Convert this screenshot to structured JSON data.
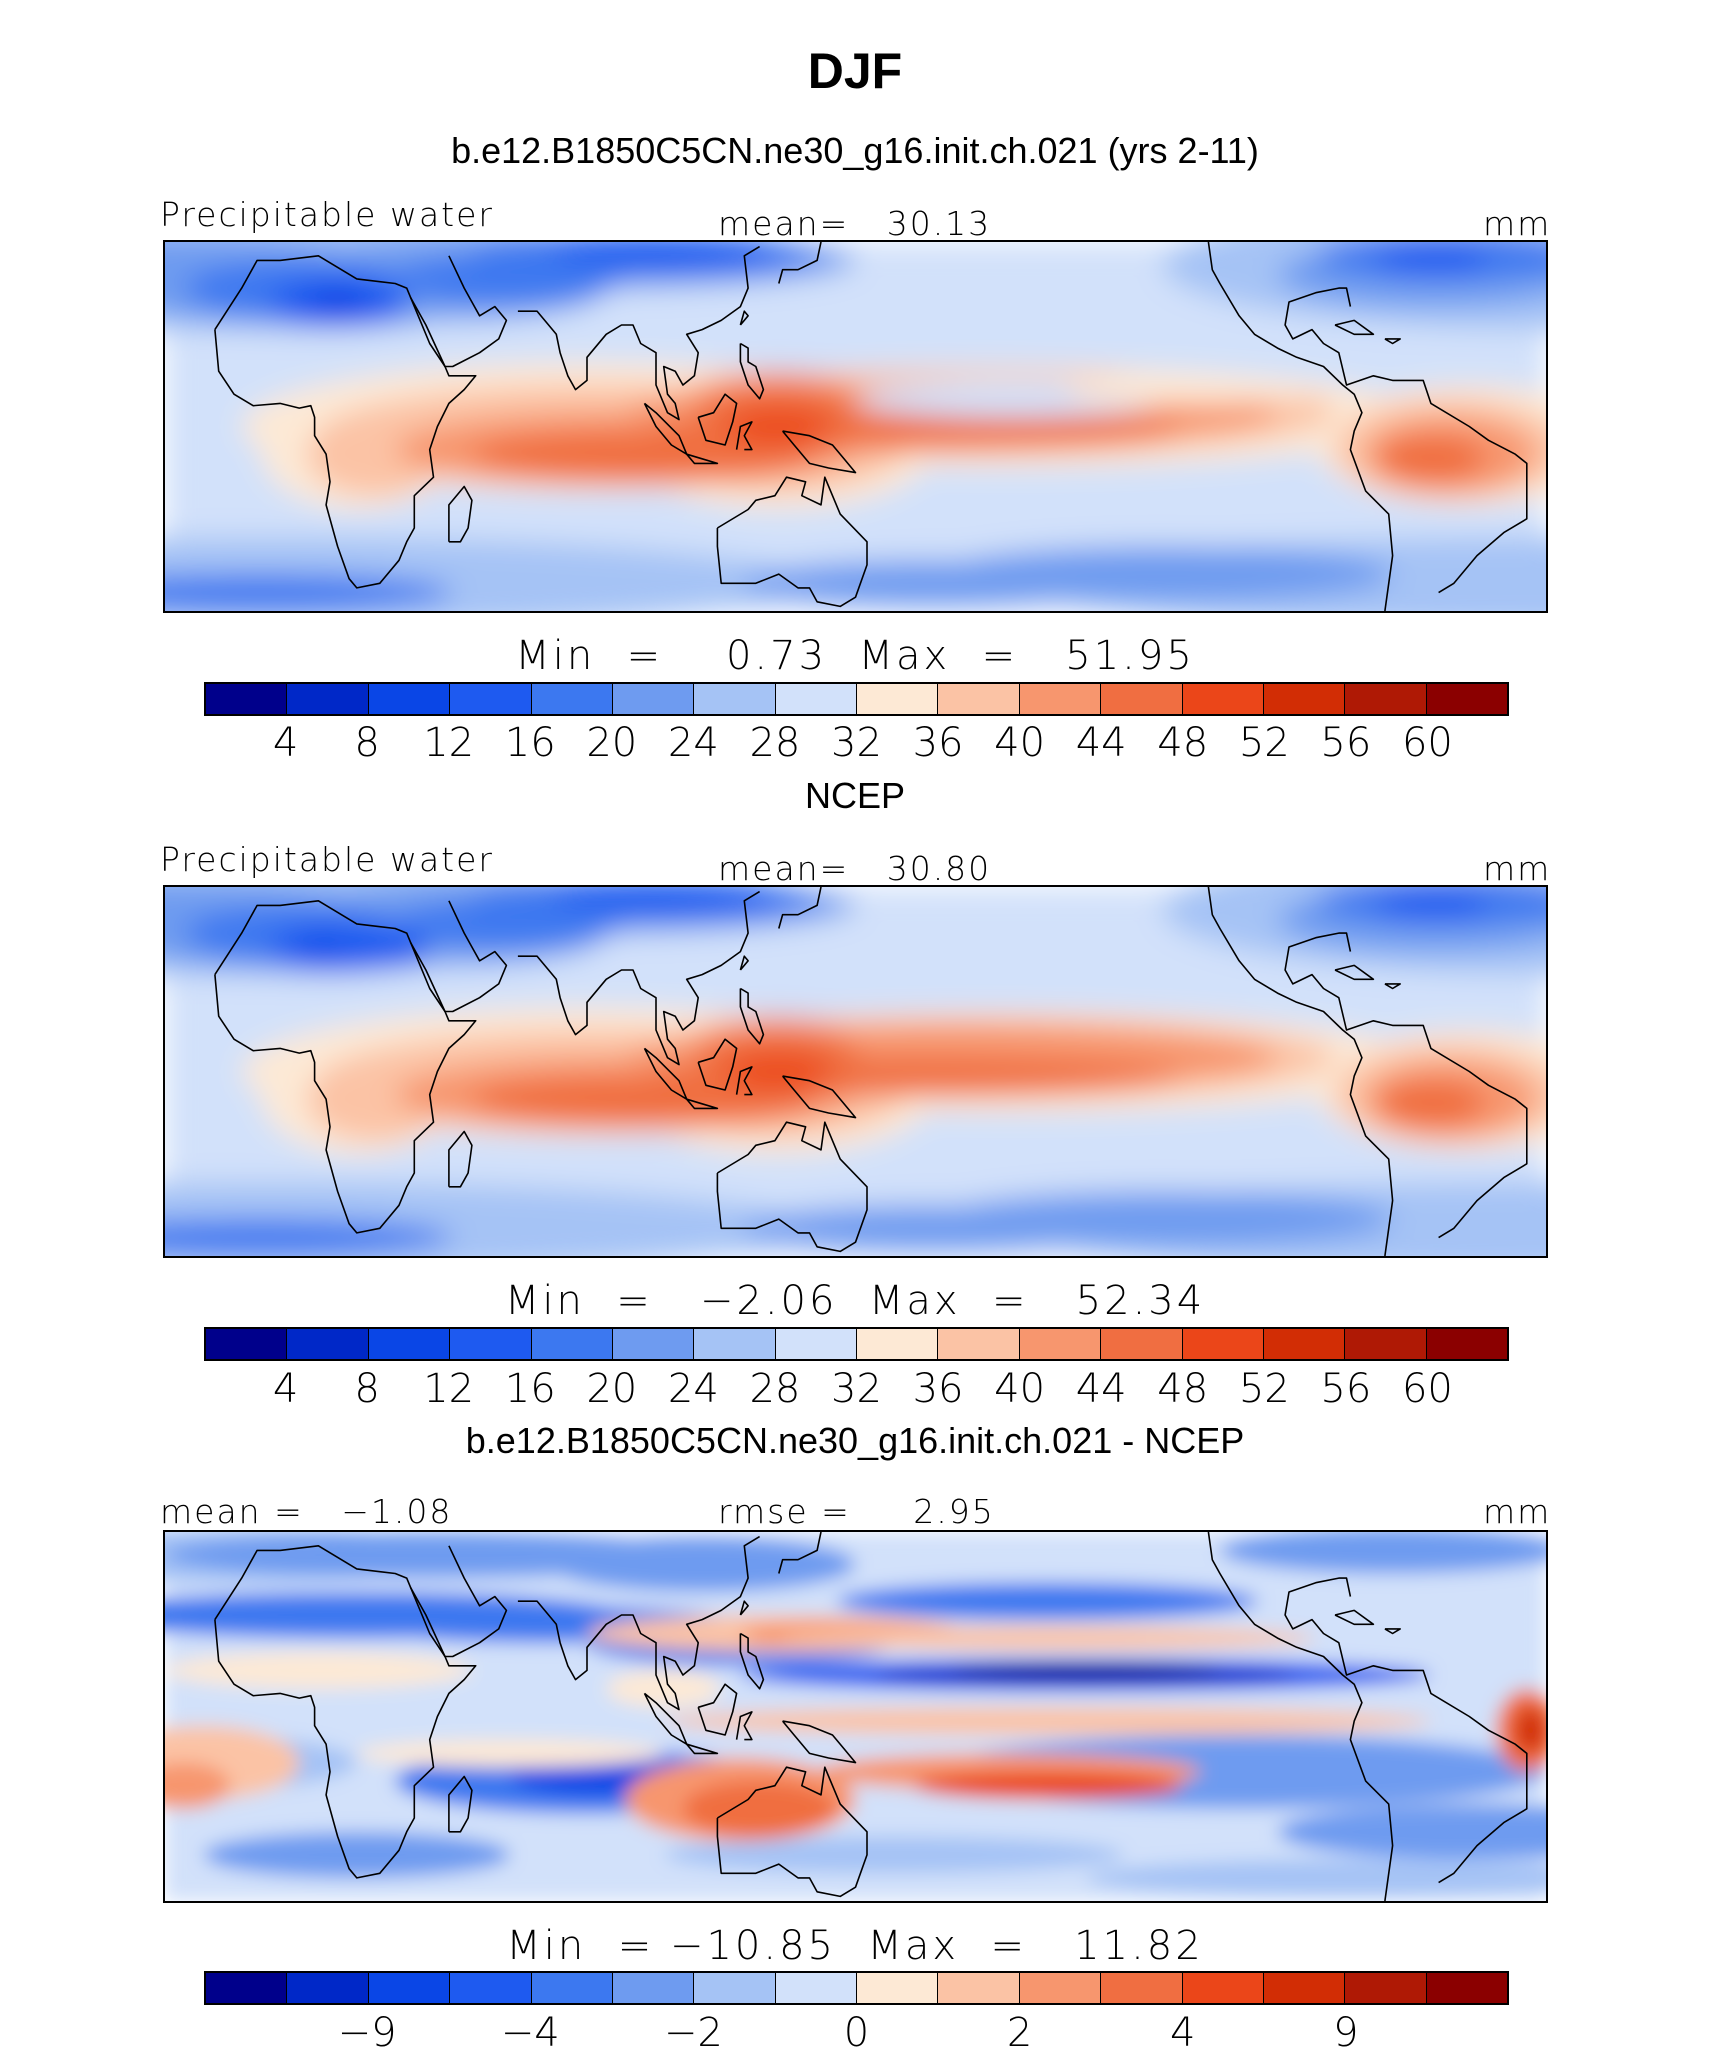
{
  "title": "DJF",
  "palette": [
    "#00008b",
    "#0028c8",
    "#0a46e6",
    "#1e5af0",
    "#3c78f0",
    "#6e9bf0",
    "#a5c3f5",
    "#d2e1fa",
    "#fde9d5",
    "#fbc3a5",
    "#f7966e",
    "#f06e41",
    "#eb4619",
    "#d22d05",
    "#af1905",
    "#8b0000"
  ],
  "panels": [
    {
      "kind": "precipitable-water",
      "header": "b.e12.B1850C5CN.ne30_g16.init.ch.021 (yrs 2-11)",
      "left_label": "Precipitable water",
      "center_label": "mean=   30.13",
      "units": "mm",
      "min_max": "Min  =    0.73  Max  =   51.95",
      "colorbar_ticks": [
        "4",
        "8",
        "12",
        "16",
        "20",
        "24",
        "28",
        "32",
        "36",
        "40",
        "44",
        "48",
        "52",
        "56",
        "60"
      ]
    },
    {
      "kind": "precipitable-water",
      "header": "NCEP",
      "left_label": "Precipitable water",
      "center_label": "mean=   30.80",
      "units": "mm",
      "min_max": "Min  =   −2.06  Max  =   52.34",
      "colorbar_ticks": [
        "4",
        "8",
        "12",
        "16",
        "20",
        "24",
        "28",
        "32",
        "36",
        "40",
        "44",
        "48",
        "52",
        "56",
        "60"
      ]
    },
    {
      "kind": "difference",
      "header": "b.e12.B1850C5CN.ne30_g16.init.ch.021 - NCEP",
      "left_label": "mean =   −1.08",
      "center_label": "rmse =     2.95",
      "units": "mm",
      "min_max": "Min  = −10.85  Max  =   11.82",
      "colorbar_ticks": [
        "",
        "−9",
        "",
        "−4",
        "",
        "−2",
        "",
        "0",
        "",
        "2",
        "",
        "4",
        "",
        "9",
        ""
      ]
    }
  ]
}
